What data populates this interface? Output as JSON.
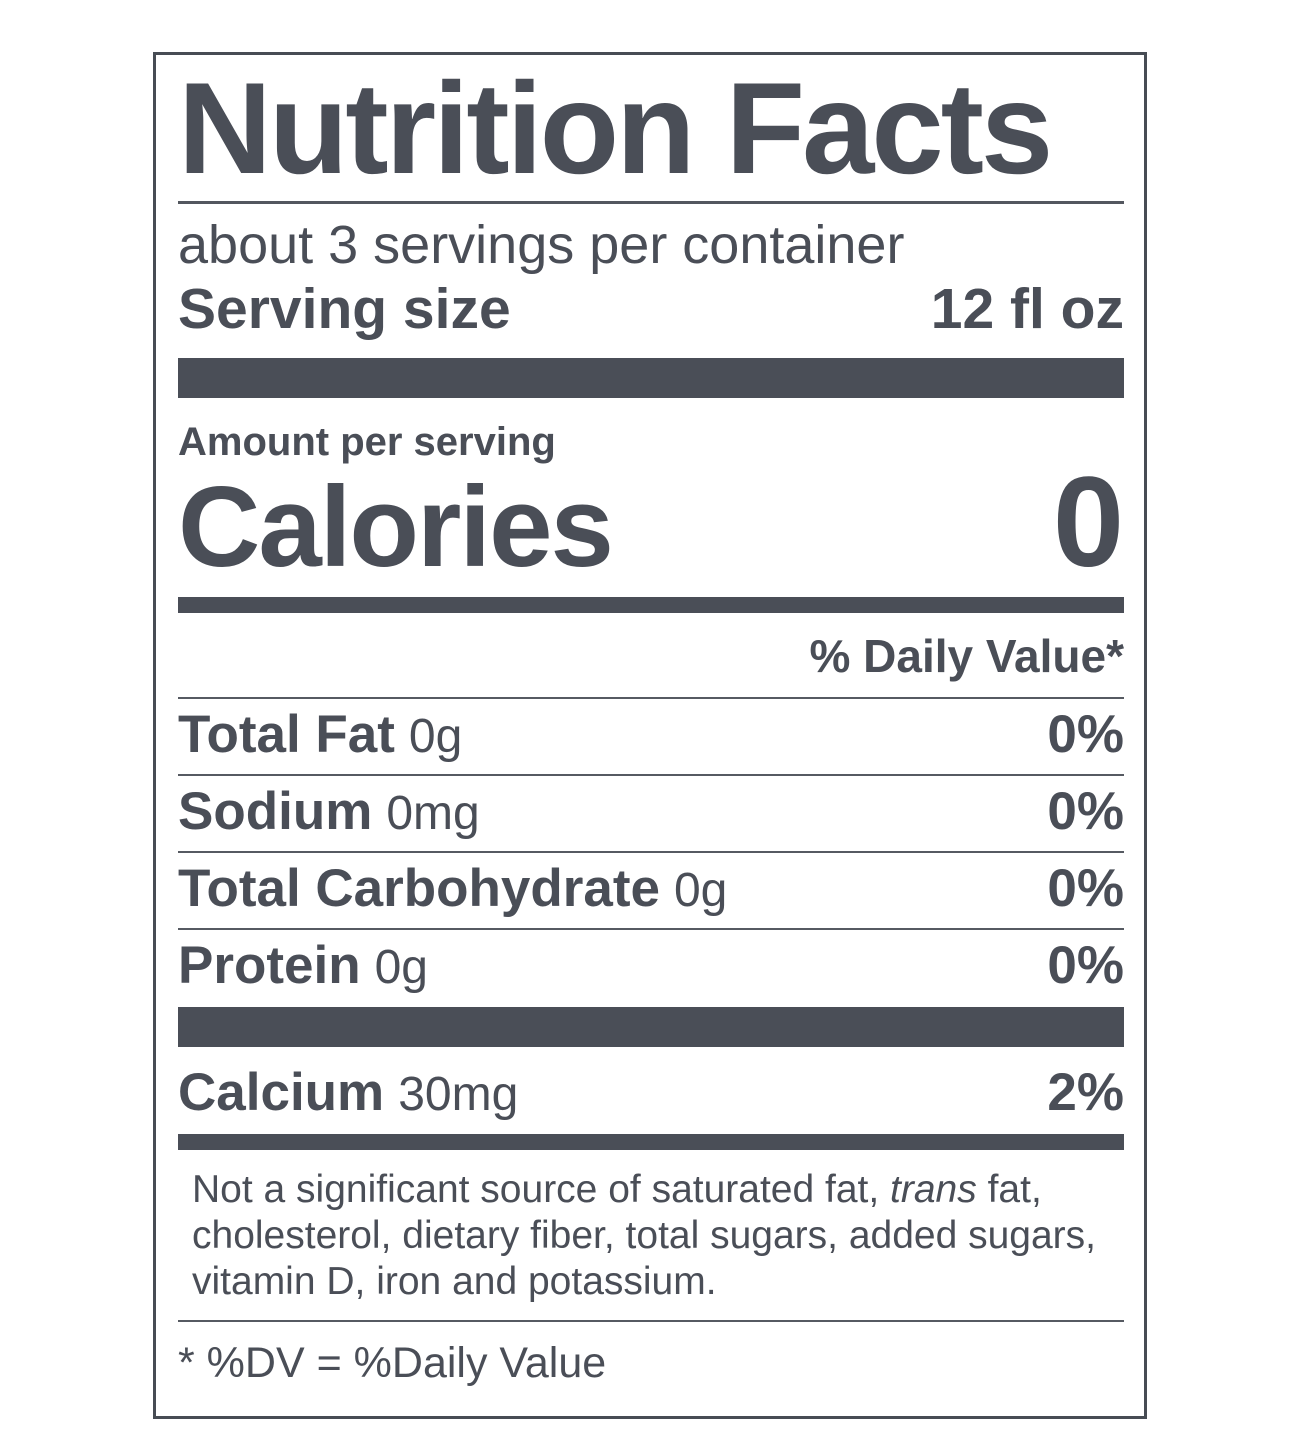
{
  "label": {
    "title": "Nutrition Facts",
    "servings_per_container": "about 3 servings per container",
    "serving_size": {
      "label": "Serving size",
      "value": "12 fl oz"
    },
    "amount_per_serving": "Amount per serving",
    "calories": {
      "label": "Calories",
      "value": "0"
    },
    "daily_value_header": "% Daily Value*",
    "nutrients": [
      {
        "name": "Total Fat",
        "amount": "0g",
        "daily_value": "0%"
      },
      {
        "name": "Sodium",
        "amount": "0mg",
        "daily_value": "0%"
      },
      {
        "name": "Total Carbohydrate",
        "amount": "0g",
        "daily_value": "0%"
      },
      {
        "name": "Protein",
        "amount": "0g",
        "daily_value": "0%"
      },
      {
        "name": "Calcium",
        "amount": "30mg",
        "daily_value": "2%"
      }
    ],
    "footnote": {
      "line1_before": "Not a significant source of saturated fat, ",
      "line1_italic": "trans",
      "line1_after": " fat,",
      "line2": "cholesterol, dietary fiber, total sugars, added sugars,",
      "line3": "vitamin D, iron and potassium."
    },
    "dv_note": "* %DV = %Daily Value",
    "colors": {
      "ink": "#4a4e57",
      "background": "#ffffff"
    }
  }
}
